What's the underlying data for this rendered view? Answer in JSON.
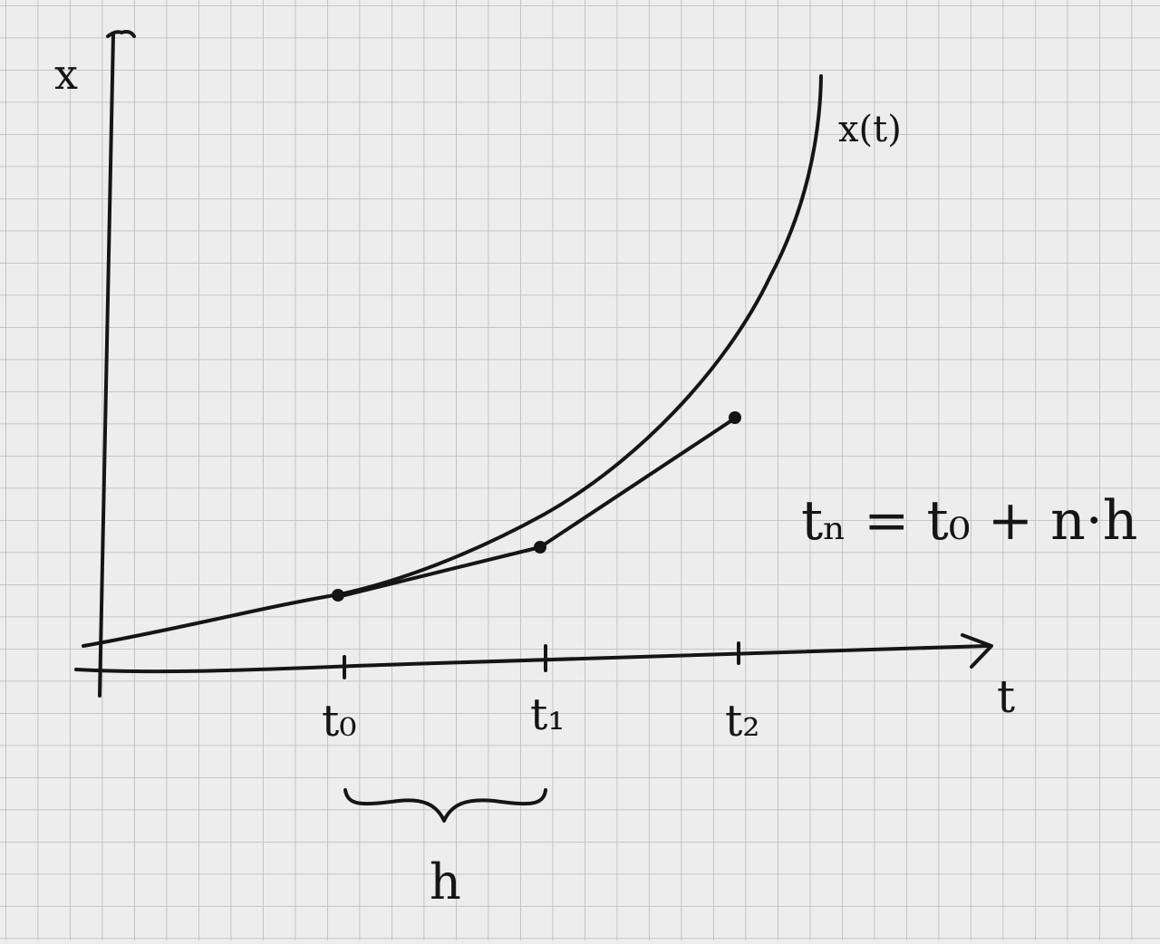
{
  "colors": {
    "paper": "#ededed",
    "grid": "#b9b9b9",
    "ink": "#151515"
  },
  "labels": {
    "x_axis": "x",
    "t_axis": "t",
    "curve": "x(t)",
    "t0": "t₀",
    "t1": "t₁",
    "t2": "t₂",
    "h": "h",
    "formula": "tₙ = t₀ + n·h"
  }
}
